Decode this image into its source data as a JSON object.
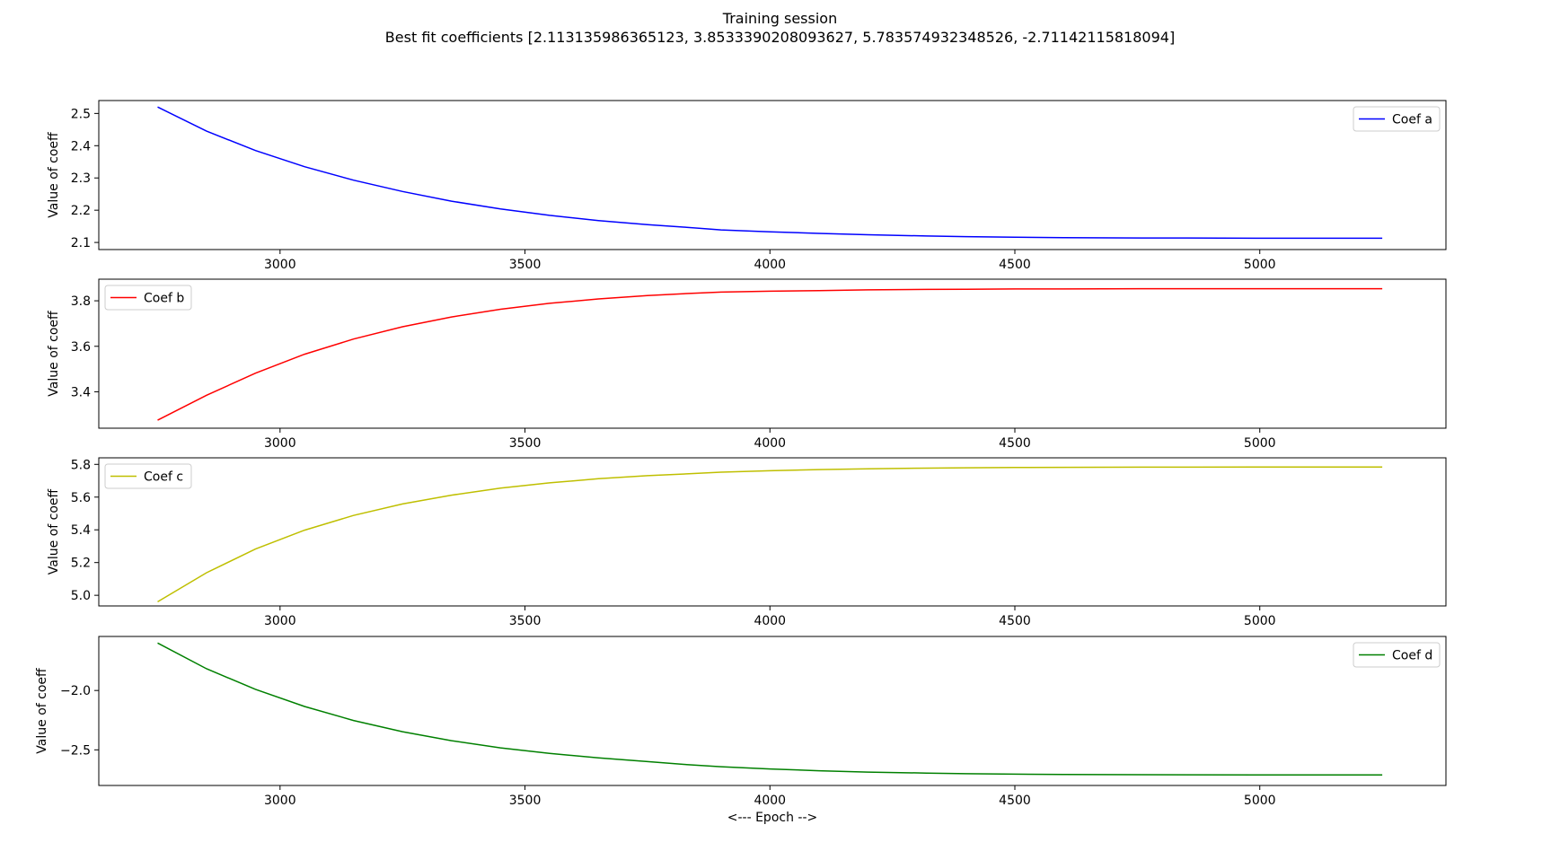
{
  "title": "Training session",
  "subtitle": "Best fit coefficients [2.113135986365123, 3.8533390208093627, 5.783574932348526, -2.71142115818094]",
  "chart_data": [
    {
      "type": "line",
      "ylabel": "Value of coeff",
      "xlabel": "",
      "xlim": [
        2630,
        5380
      ],
      "ylim": [
        2.078,
        2.54
      ],
      "xticks": [
        3000,
        3500,
        4000,
        4500,
        5000
      ],
      "yticks": [
        2.1,
        2.2,
        2.3,
        2.4,
        2.5
      ],
      "ytick_labels": [
        "2.1",
        "2.2",
        "2.3",
        "2.4",
        "2.5"
      ],
      "legend_position": "top-right",
      "series": [
        {
          "name": "Coef a",
          "color": "#0000ff",
          "x": [
            2750,
            2850,
            2950,
            3050,
            3150,
            3250,
            3350,
            3450,
            3550,
            3650,
            3750,
            3830,
            3900,
            4000,
            4100,
            4200,
            4320,
            4400,
            4500,
            4600,
            4760,
            4850,
            5000,
            5100,
            5180,
            5250
          ],
          "y": [
            2.52,
            2.445,
            2.385,
            2.335,
            2.293,
            2.258,
            2.228,
            2.204,
            2.184,
            2.168,
            2.155,
            2.147,
            2.139,
            2.133,
            2.128,
            2.124,
            2.12,
            2.118,
            2.116,
            2.115,
            2.114,
            2.114,
            2.113,
            2.113,
            2.113,
            2.113
          ]
        }
      ]
    },
    {
      "type": "line",
      "ylabel": "Value of coeff",
      "xlabel": "",
      "xlim": [
        2630,
        5380
      ],
      "ylim": [
        3.24,
        3.895
      ],
      "xticks": [
        3000,
        3500,
        4000,
        4500,
        5000
      ],
      "yticks": [
        3.4,
        3.6,
        3.8
      ],
      "ytick_labels": [
        "3.4",
        "3.6",
        "3.8"
      ],
      "legend_position": "top-left",
      "series": [
        {
          "name": "Coef b",
          "color": "#ff0000",
          "x": [
            2750,
            2850,
            2950,
            3050,
            3150,
            3250,
            3350,
            3450,
            3550,
            3650,
            3750,
            3830,
            3900,
            4000,
            4100,
            4200,
            4320,
            4400,
            4500,
            4600,
            4760,
            4850,
            5000,
            5100,
            5180,
            5250
          ],
          "y": [
            3.275,
            3.385,
            3.482,
            3.565,
            3.632,
            3.686,
            3.729,
            3.763,
            3.789,
            3.808,
            3.823,
            3.832,
            3.838,
            3.842,
            3.845,
            3.848,
            3.85,
            3.851,
            3.852,
            3.852,
            3.853,
            3.853,
            3.853,
            3.853,
            3.853,
            3.853
          ]
        }
      ]
    },
    {
      "type": "line",
      "ylabel": "Value of coeff",
      "xlabel": "",
      "xlim": [
        2630,
        5380
      ],
      "ylim": [
        4.935,
        5.84
      ],
      "xticks": [
        3000,
        3500,
        4000,
        4500,
        5000
      ],
      "yticks": [
        5.0,
        5.2,
        5.4,
        5.6,
        5.8
      ],
      "ytick_labels": [
        "5.0",
        "5.2",
        "5.4",
        "5.6",
        "5.8"
      ],
      "legend_position": "top-left",
      "series": [
        {
          "name": "Coef c",
          "color": "#bfbf00",
          "x": [
            2750,
            2850,
            2950,
            3050,
            3150,
            3250,
            3350,
            3450,
            3550,
            3650,
            3750,
            3830,
            3900,
            4000,
            4100,
            4200,
            4320,
            4400,
            4500,
            4600,
            4760,
            4850,
            5000,
            5100,
            5180,
            5250
          ],
          "y": [
            4.96,
            5.138,
            5.283,
            5.398,
            5.488,
            5.558,
            5.612,
            5.655,
            5.687,
            5.712,
            5.731,
            5.742,
            5.752,
            5.761,
            5.768,
            5.773,
            5.777,
            5.779,
            5.781,
            5.782,
            5.783,
            5.783,
            5.784,
            5.784,
            5.784,
            5.784
          ]
        }
      ]
    },
    {
      "type": "line",
      "ylabel": "Value of coeff",
      "xlabel": "<--- Epoch -->",
      "xlim": [
        2630,
        5380
      ],
      "ylim": [
        -2.8,
        -1.545
      ],
      "xticks": [
        3000,
        3500,
        4000,
        4500,
        5000
      ],
      "yticks": [
        -2.5,
        -2.0
      ],
      "ytick_labels": [
        "−2.5",
        "−2.0"
      ],
      "legend_position": "top-right",
      "series": [
        {
          "name": "Coef d",
          "color": "#008000",
          "x": [
            2750,
            2850,
            2950,
            3050,
            3150,
            3250,
            3350,
            3450,
            3550,
            3650,
            3750,
            3830,
            3900,
            4000,
            4100,
            4200,
            4320,
            4400,
            4500,
            4600,
            4760,
            4850,
            5000,
            5100,
            5180,
            5250
          ],
          "y": [
            -1.6,
            -1.817,
            -1.99,
            -2.135,
            -2.253,
            -2.347,
            -2.423,
            -2.483,
            -2.53,
            -2.568,
            -2.599,
            -2.624,
            -2.642,
            -2.661,
            -2.676,
            -2.687,
            -2.696,
            -2.701,
            -2.705,
            -2.707,
            -2.709,
            -2.71,
            -2.711,
            -2.711,
            -2.711,
            -2.711
          ]
        }
      ]
    }
  ]
}
